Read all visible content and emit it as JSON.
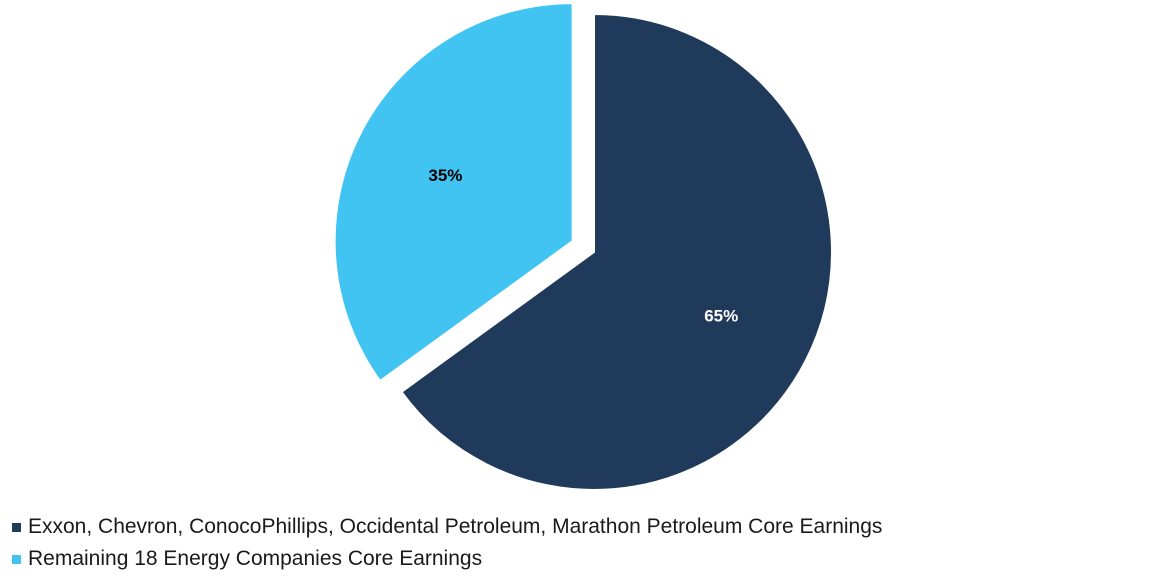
{
  "chart_data": {
    "type": "pie",
    "slices": [
      {
        "label": "Exxon, Chevron, ConocoPhillips, Occidental Petroleum, Marathon Petroleum Core Earnings",
        "value": 65,
        "display": "65%",
        "color": "#203A5C",
        "label_color": "#FFFFFF",
        "exploded": false
      },
      {
        "label": "Remaining 18 Energy Companies Core Earnings",
        "value": 35,
        "display": "35%",
        "color": "#42C4F3",
        "label_color": "#000000",
        "exploded": true
      }
    ],
    "start_angle": "12 o'clock",
    "direction": "clockwise",
    "legend_position": "bottom-left"
  }
}
